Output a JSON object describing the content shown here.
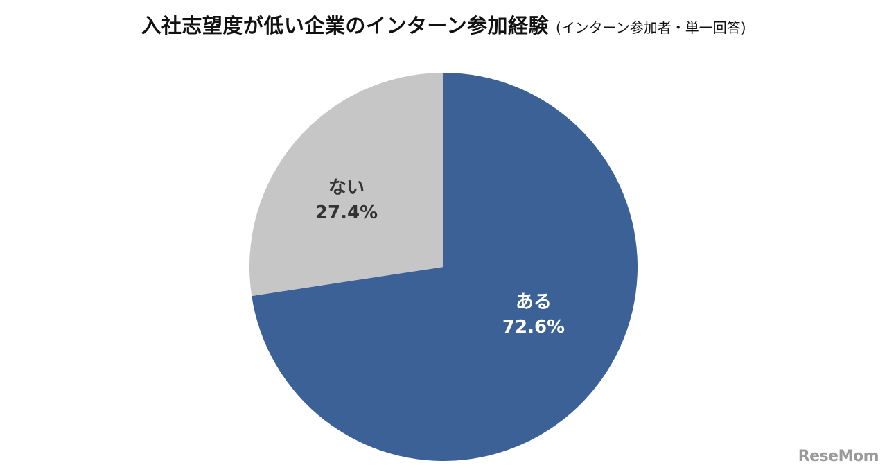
{
  "title": "入社志望度が低い企業のインターン参加経験",
  "subtitle": "(インターン参加者・単一回答)",
  "watermark": "ReseMom",
  "chart_data": {
    "type": "pie",
    "title": "入社志望度が低い企業のインターン参加経験",
    "subtitle": "(インターン参加者・単一回答)",
    "start_angle_deg": 0,
    "direction": "clockwise",
    "slices": [
      {
        "label": "ある",
        "value": 72.6,
        "value_label": "72.6%",
        "color": "#3b6196",
        "label_color": "#ffffff"
      },
      {
        "label": "ない",
        "value": 27.4,
        "value_label": "27.4%",
        "color": "#c6c6c6",
        "label_color": "#333333"
      }
    ],
    "legend": false
  }
}
